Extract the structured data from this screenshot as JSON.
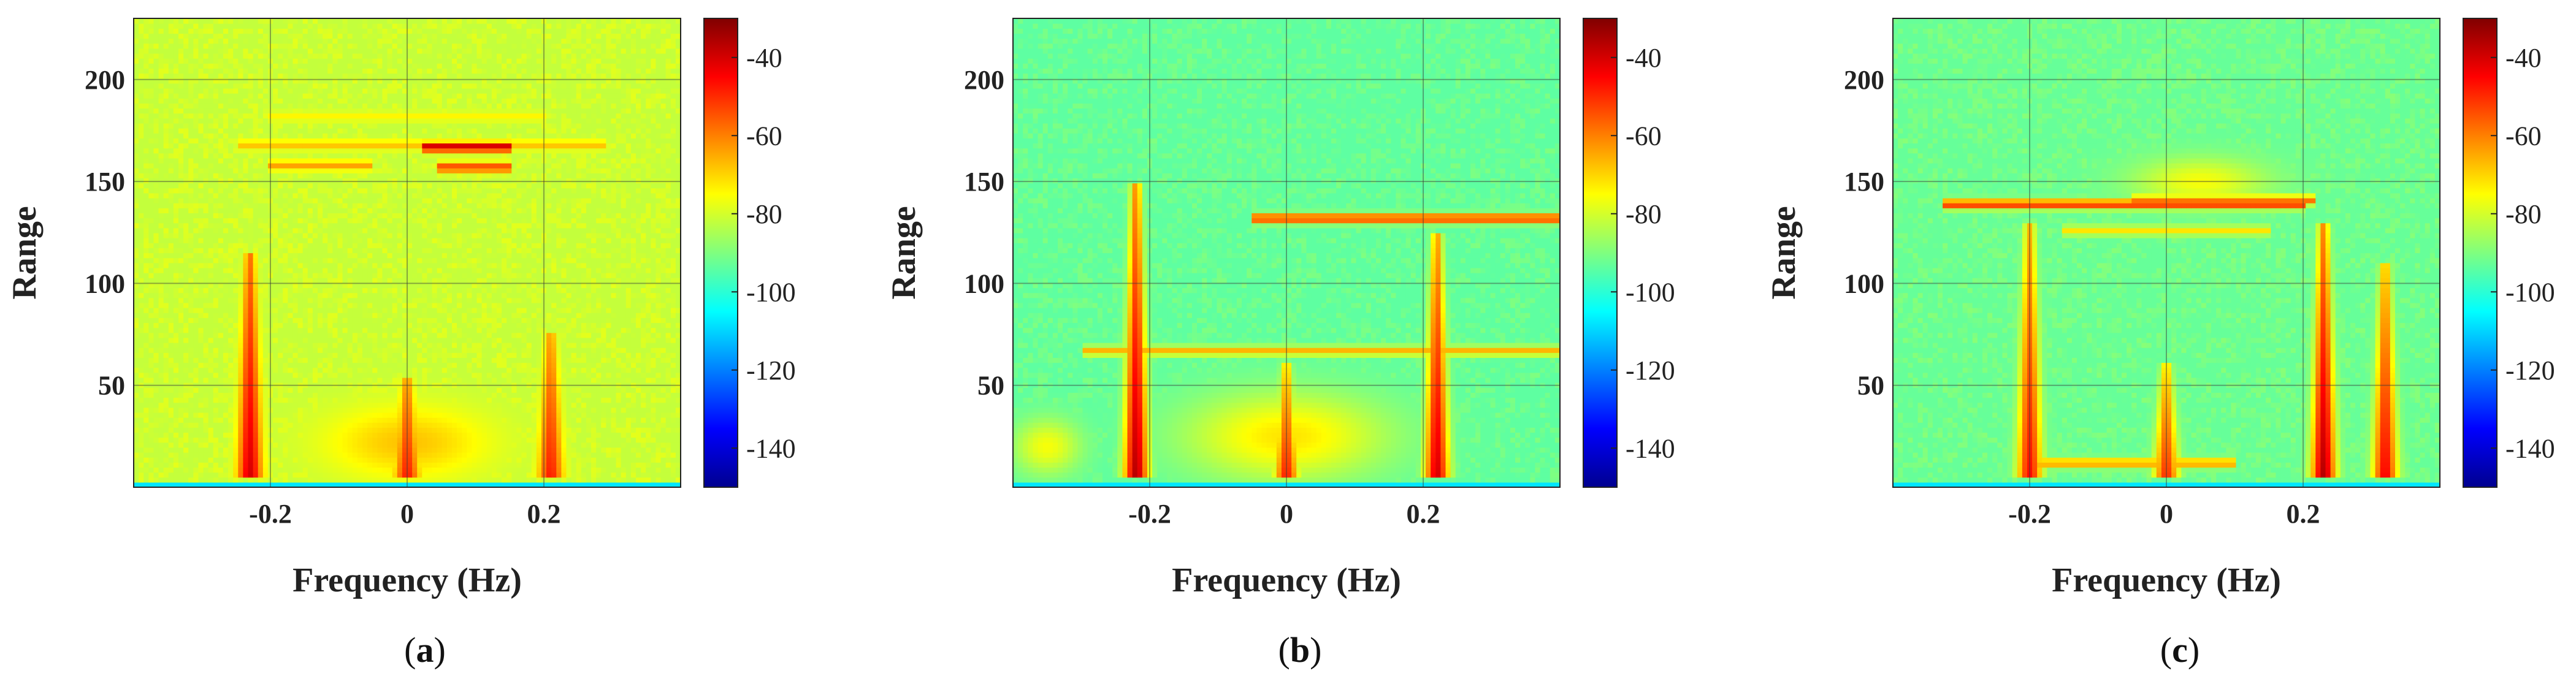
{
  "figure": {
    "panels": [
      {
        "id": "a",
        "caption_open": "(",
        "caption_letter": "a",
        "caption_close": ")"
      },
      {
        "id": "b",
        "caption_open": "(",
        "caption_letter": "b",
        "caption_close": ")"
      },
      {
        "id": "c",
        "caption_open": "(",
        "caption_letter": "c",
        "caption_close": ")"
      }
    ]
  },
  "chart_data": [
    {
      "type": "heatmap",
      "panel": "a",
      "xlabel": "Frequency (Hz)",
      "ylabel": "Range",
      "xlim": [
        -0.4,
        0.4
      ],
      "ylim": [
        0,
        230
      ],
      "xticks": [
        -0.2,
        0,
        0.2
      ],
      "xticklabels": [
        "-0.2",
        "0",
        "0.2"
      ],
      "yticks": [
        50,
        100,
        150,
        200
      ],
      "yticklabels": [
        "50",
        "100",
        "150",
        "200"
      ],
      "grid": true,
      "colormap": "jet",
      "clim": [
        -150,
        -30
      ],
      "background_level": -82,
      "colorbar_ticks": [
        -40,
        -60,
        -80,
        -100,
        -120,
        -140
      ],
      "colorbar_ticklabels": [
        "-40",
        "-60",
        "-80",
        "-100",
        "-120",
        "-140"
      ],
      "features": [
        {
          "kind": "vertical_streak",
          "x": -0.23,
          "y": [
            5,
            115
          ],
          "level": -40
        },
        {
          "kind": "vertical_streak",
          "x": 0.21,
          "y": [
            5,
            75
          ],
          "level": -48
        },
        {
          "kind": "horizontal_band",
          "x": [
            0.02,
            0.15
          ],
          "y": 167,
          "level": -38
        },
        {
          "kind": "horizontal_band",
          "x": [
            -0.25,
            0.29
          ],
          "y": 168,
          "level": -68
        },
        {
          "kind": "horizontal_band",
          "x": [
            0.04,
            0.15
          ],
          "y": 157,
          "level": -52
        },
        {
          "kind": "horizontal_band",
          "x": [
            -0.2,
            -0.05
          ],
          "y": 158,
          "level": -64
        },
        {
          "kind": "horizontal_band",
          "x": [
            -0.2,
            0.2
          ],
          "y": 182,
          "level": -74
        },
        {
          "kind": "vertical_streak",
          "x": 0.0,
          "y": [
            5,
            55
          ],
          "level": -48
        },
        {
          "kind": "blob",
          "x": 0.0,
          "y": 22,
          "sx": 0.12,
          "sy": 18,
          "level": -68
        }
      ]
    },
    {
      "type": "heatmap",
      "panel": "b",
      "xlabel": "Frequency (Hz)",
      "ylabel": "Range",
      "xlim": [
        -0.4,
        0.4
      ],
      "ylim": [
        0,
        230
      ],
      "xticks": [
        -0.2,
        0,
        0.2
      ],
      "xticklabels": [
        "-0.2",
        "0",
        "0.2"
      ],
      "yticks": [
        50,
        100,
        150,
        200
      ],
      "yticklabels": [
        "50",
        "100",
        "150",
        "200"
      ],
      "grid": true,
      "colormap": "jet",
      "clim": [
        -150,
        -30
      ],
      "background_level": -94,
      "colorbar_ticks": [
        -40,
        -60,
        -80,
        -100,
        -120,
        -140
      ],
      "colorbar_ticklabels": [
        "-40",
        "-60",
        "-80",
        "-100",
        "-120",
        "-140"
      ],
      "features": [
        {
          "kind": "vertical_streak",
          "x": -0.22,
          "y": [
            5,
            150
          ],
          "level": -36
        },
        {
          "kind": "vertical_streak",
          "x": 0.22,
          "y": [
            5,
            125
          ],
          "level": -40
        },
        {
          "kind": "horizontal_band",
          "x": [
            -0.05,
            0.4
          ],
          "y": 132,
          "level": -50
        },
        {
          "kind": "horizontal_band",
          "x": [
            -0.3,
            0.4
          ],
          "y": 67,
          "level": -66
        },
        {
          "kind": "vertical_streak",
          "x": 0.0,
          "y": [
            5,
            60
          ],
          "level": -48
        },
        {
          "kind": "blob",
          "x": 0.0,
          "y": 25,
          "sx": 0.15,
          "sy": 22,
          "level": -72
        },
        {
          "kind": "blob",
          "x": -0.35,
          "y": 20,
          "sx": 0.05,
          "sy": 14,
          "level": -76
        }
      ]
    },
    {
      "type": "heatmap",
      "panel": "c",
      "xlabel": "Frequency (Hz)",
      "ylabel": "Range",
      "xlim": [
        -0.4,
        0.4
      ],
      "ylim": [
        0,
        230
      ],
      "xticks": [
        -0.2,
        0,
        0.2
      ],
      "xticklabels": [
        "-0.2",
        "0",
        "0.2"
      ],
      "yticks": [
        50,
        100,
        150,
        200
      ],
      "yticklabels": [
        "50",
        "100",
        "150",
        "200"
      ],
      "grid": true,
      "colormap": "jet",
      "clim": [
        -150,
        -30
      ],
      "background_level": -93,
      "colorbar_ticks": [
        -40,
        -60,
        -80,
        -100,
        -120,
        -140
      ],
      "colorbar_ticklabels": [
        "-40",
        "-60",
        "-80",
        "-100",
        "-120",
        "-140"
      ],
      "features": [
        {
          "kind": "vertical_streak",
          "x": -0.2,
          "y": [
            5,
            130
          ],
          "level": -46
        },
        {
          "kind": "vertical_streak",
          "x": 0.23,
          "y": [
            5,
            130
          ],
          "level": -36
        },
        {
          "kind": "vertical_streak",
          "x": 0.32,
          "y": [
            5,
            110
          ],
          "level": -44
        },
        {
          "kind": "horizontal_band",
          "x": [
            -0.33,
            0.2
          ],
          "y": 139,
          "level": -50
        },
        {
          "kind": "horizontal_band",
          "x": [
            -0.05,
            0.22
          ],
          "y": 141,
          "level": -58
        },
        {
          "kind": "horizontal_band",
          "x": [
            -0.15,
            0.15
          ],
          "y": 126,
          "level": -72
        },
        {
          "kind": "vertical_streak",
          "x": 0.0,
          "y": [
            5,
            60
          ],
          "level": -50
        },
        {
          "kind": "horizontal_band",
          "x": [
            -0.2,
            0.1
          ],
          "y": 12,
          "level": -62
        },
        {
          "kind": "blob",
          "x": 0.05,
          "y": 150,
          "sx": 0.1,
          "sy": 12,
          "level": -76
        }
      ]
    }
  ]
}
